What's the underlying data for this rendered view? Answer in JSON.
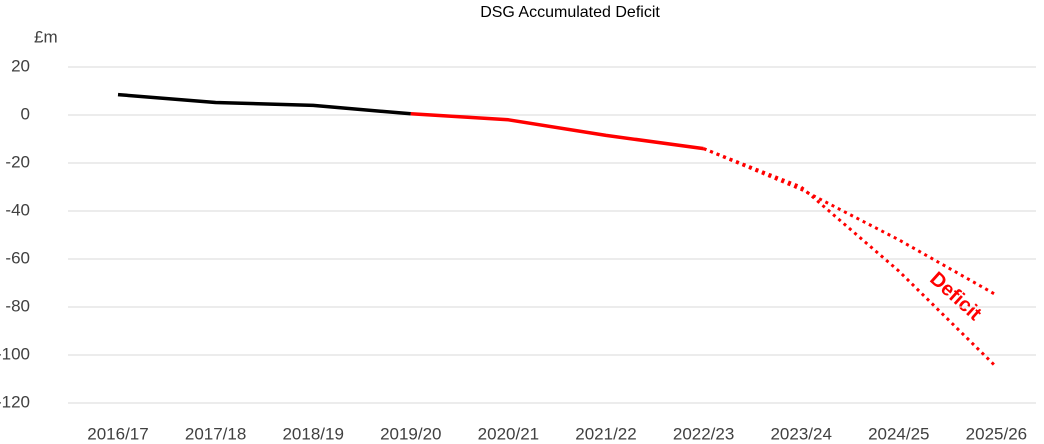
{
  "chart_data": {
    "type": "line",
    "title": "DSG Accumulated Deficit",
    "y_axis_label": "£m",
    "categories": [
      "2016/17",
      "2017/18",
      "2018/19",
      "2019/20",
      "2020/21",
      "2021/22",
      "2022/23",
      "2023/24",
      "2024/25",
      "2025/26"
    ],
    "series": [
      {
        "color": "#000000",
        "dotted": false,
        "values": [
          8.5,
          5.2,
          4,
          0.5,
          null,
          null,
          null,
          null,
          null,
          null
        ]
      },
      {
        "color": "#ff0000",
        "dotted": false,
        "values": [
          null,
          null,
          null,
          0.5,
          -2,
          -8.5,
          -14,
          null,
          null,
          null
        ]
      },
      {
        "color": "#ff0000",
        "dotted": true,
        "values": [
          null,
          null,
          null,
          null,
          null,
          null,
          -14,
          -31,
          -52,
          -75
        ]
      },
      {
        "color": "#ff0000",
        "dotted": true,
        "values": [
          null,
          null,
          null,
          null,
          null,
          null,
          -14,
          -30,
          -65,
          -105
        ]
      }
    ],
    "ylim": [
      -120,
      20
    ],
    "yticks": [
      -120,
      -100,
      -80,
      -60,
      -40,
      -20,
      0,
      20
    ],
    "grid": true,
    "annotation": "Deficit"
  }
}
